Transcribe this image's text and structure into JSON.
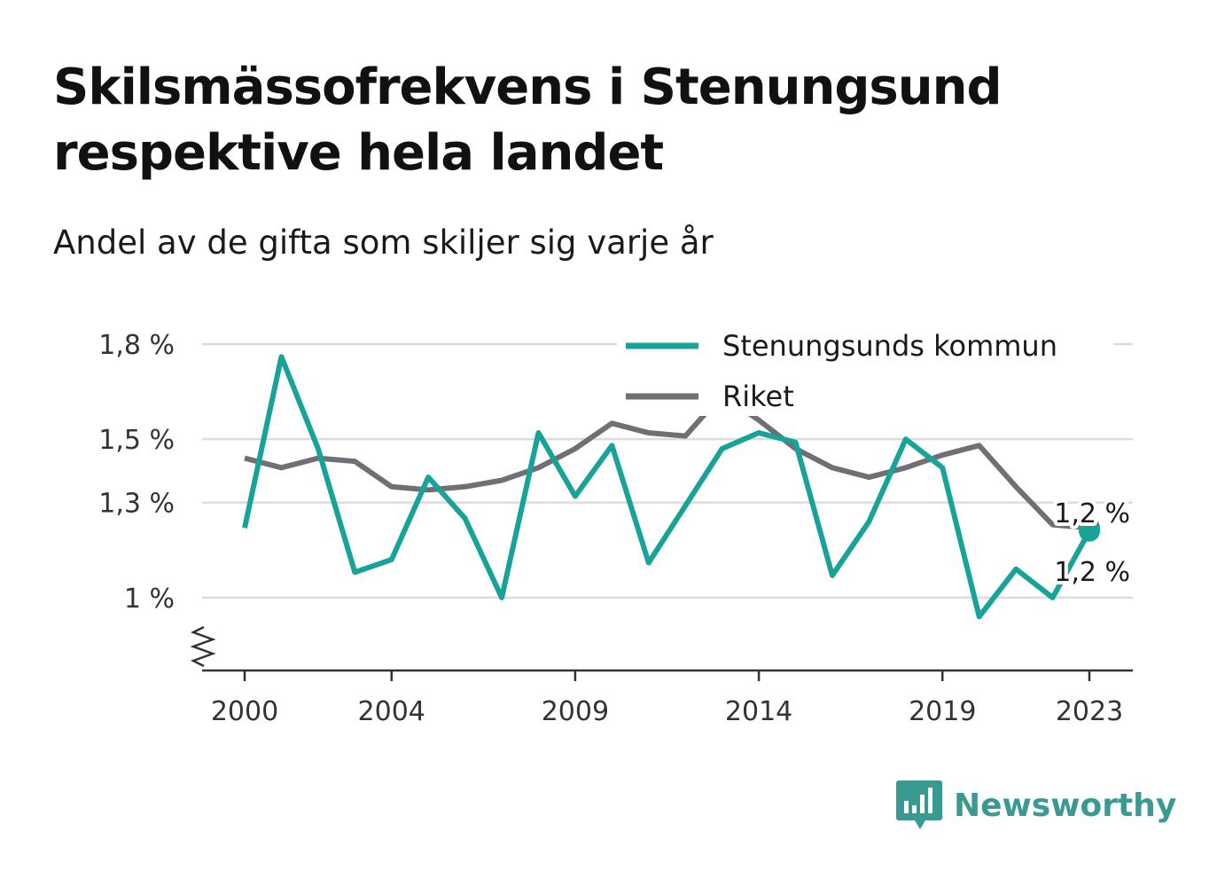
{
  "chart_data": {
    "type": "line",
    "title": "Skilsmässofrekvens i Stenungsund respektive hela landet",
    "subtitle": "Andel av de gifta som skiljer sig varje år",
    "x": [
      2000,
      2001,
      2002,
      2003,
      2004,
      2005,
      2006,
      2007,
      2008,
      2009,
      2010,
      2011,
      2012,
      2013,
      2014,
      2015,
      2016,
      2017,
      2018,
      2019,
      2020,
      2021,
      2022,
      2023
    ],
    "x_ticks": [
      2000,
      2004,
      2009,
      2014,
      2019,
      2023
    ],
    "y_ticks": [
      1.0,
      1.3,
      1.5,
      1.8
    ],
    "y_tick_labels": [
      "1 %",
      "1,3 %",
      "1,5 %",
      "1,8 %"
    ],
    "ylim": [
      0.77,
      1.8
    ],
    "grid": true,
    "legend_position": "top-right",
    "series": [
      {
        "name": "Stenungsunds kommun",
        "color": "#17a398",
        "values": [
          1.22,
          1.76,
          1.47,
          1.08,
          1.12,
          1.38,
          1.25,
          1.0,
          1.52,
          1.32,
          1.48,
          1.11,
          1.29,
          1.47,
          1.52,
          1.49,
          1.07,
          1.24,
          1.5,
          1.41,
          0.94,
          1.09,
          1.0,
          1.21
        ]
      },
      {
        "name": "Riket",
        "color": "#706f74",
        "values": [
          1.44,
          1.41,
          1.44,
          1.43,
          1.35,
          1.34,
          1.35,
          1.37,
          1.41,
          1.47,
          1.55,
          1.52,
          1.51,
          1.64,
          1.56,
          1.47,
          1.41,
          1.38,
          1.41,
          1.45,
          1.48,
          1.35,
          1.23,
          1.22
        ]
      }
    ],
    "end_labels": [
      "1,2 %",
      "1,2 %"
    ]
  },
  "brand": {
    "name": "Newsworthy",
    "icon": "bar-chart-speech-bubble-icon",
    "color": "#3a9a92"
  }
}
